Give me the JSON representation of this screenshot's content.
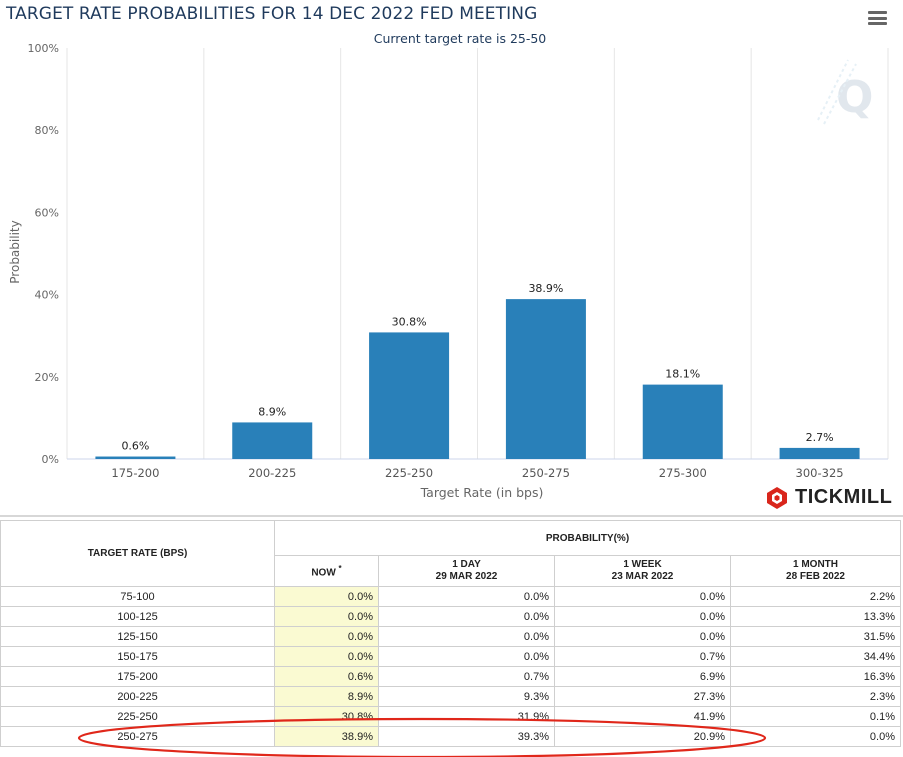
{
  "header": {
    "title": "TARGET RATE PROBABILITIES FOR 14 DEC 2022 FED MEETING",
    "menu_icon": "hamburger-menu-icon"
  },
  "chart_data": {
    "type": "bar",
    "title": "TARGET RATE PROBABILITIES FOR 14 DEC 2022 FED MEETING",
    "subtitle": "Current target rate is 25-50",
    "xlabel": "Target Rate (in bps)",
    "ylabel": "Probability",
    "categories": [
      "175-200",
      "200-225",
      "225-250",
      "250-275",
      "275-300",
      "300-325"
    ],
    "values": [
      0.6,
      8.9,
      30.8,
      38.9,
      18.1,
      2.7
    ],
    "data_labels": [
      "0.6%",
      "8.9%",
      "30.8%",
      "38.9%",
      "18.1%",
      "2.7%"
    ],
    "ylim": [
      0,
      100
    ],
    "yticks": [
      "0%",
      "20%",
      "40%",
      "60%",
      "80%",
      "100%"
    ],
    "ytick_values": [
      0,
      20,
      40,
      60,
      80,
      100
    ],
    "grid": true,
    "bar_color": "#2980b9"
  },
  "branding": {
    "logo_text": "TICKMILL",
    "logo_color": "#d9261c",
    "watermark_icon": "q-watermark-icon"
  },
  "table": {
    "rate_header": "TARGET RATE (BPS)",
    "prob_header": "PROBABILITY(%)",
    "columns": [
      {
        "label": "NOW",
        "marker": "*",
        "date": ""
      },
      {
        "label": "1 DAY",
        "date": "29 MAR 2022"
      },
      {
        "label": "1 WEEK",
        "date": "23 MAR 2022"
      },
      {
        "label": "1 MONTH",
        "date": "28 FEB 2022"
      }
    ],
    "rows": [
      {
        "rate": "75-100",
        "now": "0.0%",
        "day": "0.0%",
        "week": "0.0%",
        "month": "2.2%"
      },
      {
        "rate": "100-125",
        "now": "0.0%",
        "day": "0.0%",
        "week": "0.0%",
        "month": "13.3%"
      },
      {
        "rate": "125-150",
        "now": "0.0%",
        "day": "0.0%",
        "week": "0.0%",
        "month": "31.5%"
      },
      {
        "rate": "150-175",
        "now": "0.0%",
        "day": "0.0%",
        "week": "0.7%",
        "month": "34.4%"
      },
      {
        "rate": "175-200",
        "now": "0.6%",
        "day": "0.7%",
        "week": "6.9%",
        "month": "16.3%"
      },
      {
        "rate": "200-225",
        "now": "8.9%",
        "day": "9.3%",
        "week": "27.3%",
        "month": "2.3%"
      },
      {
        "rate": "225-250",
        "now": "30.8%",
        "day": "31.9%",
        "week": "41.9%",
        "month": "0.1%"
      },
      {
        "rate": "250-275",
        "now": "38.9%",
        "day": "39.3%",
        "week": "20.9%",
        "month": "0.0%"
      }
    ],
    "now_highlight_color": "#fafad2",
    "annotation_color": "#e0271a"
  }
}
